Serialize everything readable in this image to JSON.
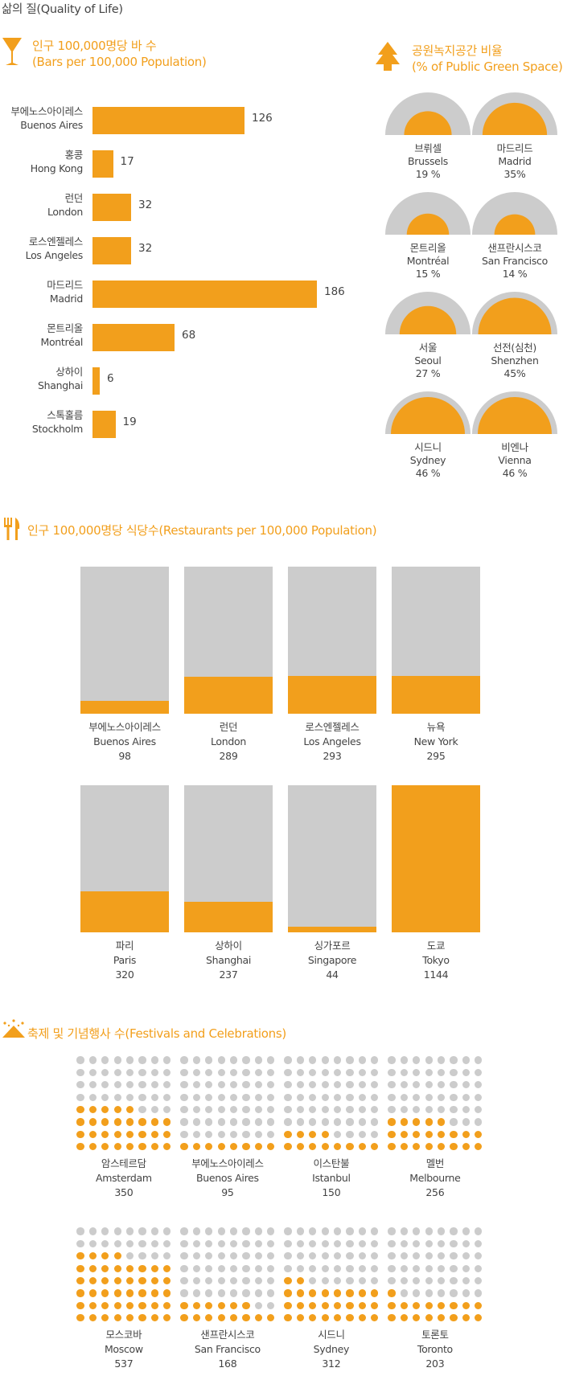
{
  "page_title": "삶의 질(Quality of Life)",
  "colors": {
    "accent": "#f29f1c",
    "neutral": "#cccccc",
    "text": "#444444"
  },
  "icons": {
    "bars": "cocktail-glass-icon",
    "green": "tree-icon",
    "restaurants": "fork-knife-icon",
    "festivals": "fireworks-tent-icon"
  },
  "bars_section": {
    "title_ko": "인구 100,000명당 바 수",
    "title_en": "(Bars per 100,000 Population)",
    "chart_data": {
      "type": "bar",
      "orientation": "horizontal",
      "categories": [
        "부에노스아이레스 Buenos Aires",
        "홍콩 Hong Kong",
        "런던 London",
        "로스엔젤레스 Los Angeles",
        "마드리드 Madrid",
        "몬트리올 Montréal",
        "상하이 Shanghai",
        "스톡홀름 Stockholm"
      ],
      "values": [
        126,
        17,
        32,
        32,
        186,
        68,
        6,
        19
      ],
      "items": [
        {
          "ko": "부에노스아이레스",
          "en": "Buenos Aires",
          "value": 126
        },
        {
          "ko": "홍콩",
          "en": "Hong Kong",
          "value": 17
        },
        {
          "ko": "런던",
          "en": "London",
          "value": 32
        },
        {
          "ko": "로스엔젤레스",
          "en": "Los Angeles",
          "value": 32
        },
        {
          "ko": "마드리드",
          "en": "Madrid",
          "value": 186
        },
        {
          "ko": "몬트리올",
          "en": "Montréal",
          "value": 68
        },
        {
          "ko": "상하이",
          "en": "Shanghai",
          "value": 6
        },
        {
          "ko": "스톡홀름",
          "en": "Stockholm",
          "value": 19
        }
      ]
    }
  },
  "green_section": {
    "title_ko": "공원녹지공간 비율",
    "title_en": "(% of Public Green Space)",
    "chart_data": {
      "type": "area",
      "unit": "%",
      "items": [
        {
          "ko": "브뤼셀",
          "en": "Brussels",
          "value": 19,
          "label": "19 %"
        },
        {
          "ko": "마드리드",
          "en": "Madrid",
          "value": 35,
          "label": "35%"
        },
        {
          "ko": "몬트리올",
          "en": "Montréal",
          "value": 15,
          "label": "15 %"
        },
        {
          "ko": "샌프란시스코",
          "en": "San Francisco",
          "value": 14,
          "label": "14 %"
        },
        {
          "ko": "서울",
          "en": "Seoul",
          "value": 27,
          "label": "27 %"
        },
        {
          "ko": "선전(심천)",
          "en": "Shenzhen",
          "value": 45,
          "label": "45%"
        },
        {
          "ko": "시드니",
          "en": "Sydney",
          "value": 46,
          "label": "46 %"
        },
        {
          "ko": "비엔나",
          "en": "Vienna",
          "value": 46,
          "label": "46 %"
        }
      ]
    }
  },
  "restaurants_section": {
    "title": "인구 100,000명당 식당수(Restaurants per 100,000 Population)",
    "chart_data": {
      "type": "bar",
      "ylim": [
        0,
        1144
      ],
      "items": [
        {
          "ko": "부에노스아이레스",
          "en": "Buenos Aires",
          "value": 98
        },
        {
          "ko": "런던",
          "en": "London",
          "value": 289
        },
        {
          "ko": "로스엔젤레스",
          "en": "Los Angeles",
          "value": 293
        },
        {
          "ko": "뉴욕",
          "en": "New York",
          "value": 295
        },
        {
          "ko": "파리",
          "en": "Paris",
          "value": 320
        },
        {
          "ko": "상하이",
          "en": "Shanghai",
          "value": 237
        },
        {
          "ko": "싱가포르",
          "en": "Singapore",
          "value": 44
        },
        {
          "ko": "도쿄",
          "en": "Tokyo",
          "value": 1144
        }
      ]
    }
  },
  "festivals_section": {
    "title": "축제 및 기념행사 수(Festivals and Celebrations)",
    "chart_data": {
      "type": "scatter",
      "grid": "8x8 dot grid per city",
      "items": [
        {
          "ko": "암스테르담",
          "en": "Amsterdam",
          "value": 350
        },
        {
          "ko": "부에노스아이레스",
          "en": "Buenos Aires",
          "value": 95
        },
        {
          "ko": "이스탄불",
          "en": "Istanbul",
          "value": 150
        },
        {
          "ko": "멜번",
          "en": "Melbourne",
          "value": 256
        },
        {
          "ko": "모스코바",
          "en": "Moscow",
          "value": 537
        },
        {
          "ko": "샌프란시스코",
          "en": "San Francisco",
          "value": 168
        },
        {
          "ko": "시드니",
          "en": "Sydney",
          "value": 312
        },
        {
          "ko": "토론토",
          "en": "Toronto",
          "value": 203
        }
      ]
    }
  }
}
